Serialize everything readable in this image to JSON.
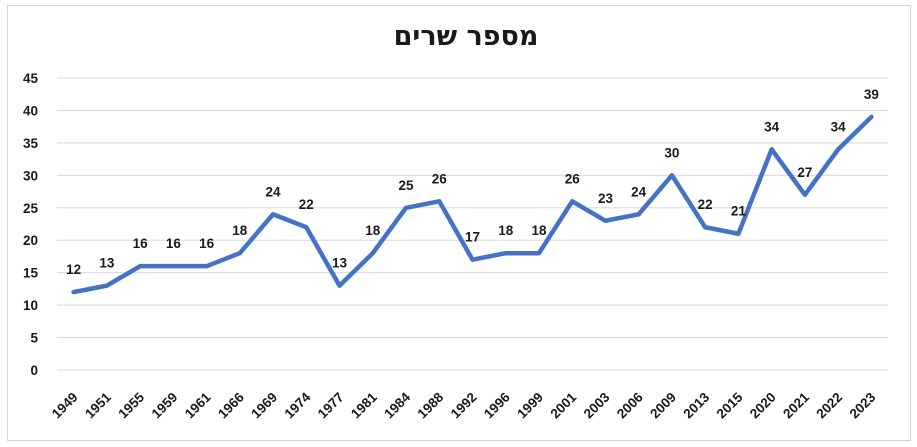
{
  "chart_data": {
    "type": "line",
    "title": "מספר שרים",
    "categories": [
      "1949",
      "1951",
      "1955",
      "1959",
      "1961",
      "1966",
      "1969",
      "1974",
      "1977",
      "1981",
      "1984",
      "1988",
      "1992",
      "1996",
      "1999",
      "2001",
      "2003",
      "2006",
      "2009",
      "2013",
      "2015",
      "2020",
      "2021",
      "2022",
      "2023"
    ],
    "values": [
      12,
      13,
      16,
      16,
      16,
      18,
      24,
      22,
      13,
      18,
      25,
      26,
      17,
      18,
      18,
      26,
      23,
      24,
      30,
      22,
      21,
      34,
      27,
      34,
      39
    ],
    "ylim": [
      0,
      45
    ],
    "ytick_step": 5,
    "yticks": [
      0,
      5,
      10,
      15,
      20,
      25,
      30,
      35,
      40,
      45
    ],
    "grid": true,
    "legend": false,
    "data_labels": true,
    "xlabel": "",
    "ylabel": "",
    "colors": {
      "series": "#4472C4",
      "gridline": "#D9D9D9",
      "text": "#1a1a1a",
      "frame_border": "#D5D5D5",
      "background": "#FFFFFF"
    }
  }
}
